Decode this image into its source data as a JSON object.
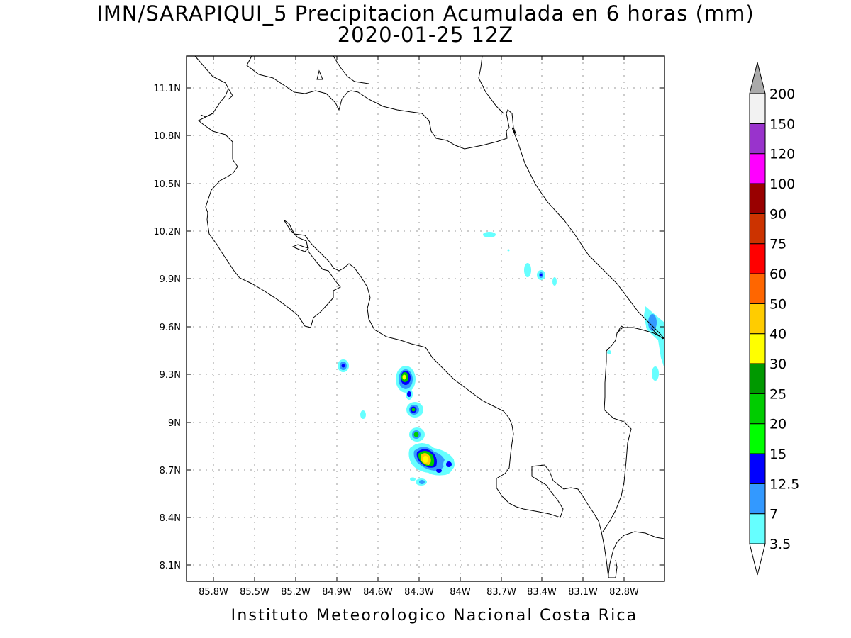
{
  "title": {
    "line1": "IMN/SARAPIQUI_5 Precipitacion Acumulada en 6 horas (mm)",
    "line2": "2020-01-25 12Z"
  },
  "footer": "Instituto Meteorologico Nacional Costa Rica",
  "map": {
    "lon_range": [
      -86.0,
      -83.0
    ],
    "lat_range": [
      8.0,
      11.2
    ],
    "x_tick_labels": [
      "85.8W",
      "85.5W",
      "85.2W",
      "84.9W",
      "84.6W",
      "84.3W",
      "84W",
      "83.7W",
      "83.4W",
      "83.1W",
      "82.8W"
    ],
    "y_tick_labels": [
      "11.1N",
      "10.8N",
      "10.5N",
      "10.2N",
      "9.9N",
      "9.6N",
      "9.3N",
      "9N",
      "8.7N",
      "8.4N",
      "8.1N"
    ],
    "grid": "dotted"
  },
  "colorbar": {
    "levels": [
      "3.5",
      "7",
      "12.5",
      "15",
      "20",
      "25",
      "30",
      "40",
      "50",
      "60",
      "75",
      "90",
      "100",
      "120",
      "150",
      "200"
    ],
    "colors": [
      "#66ffff",
      "#3399ff",
      "#0000ff",
      "#00ff00",
      "#00cc00",
      "#009900",
      "#ffff00",
      "#ffcc00",
      "#ff6600",
      "#ff0000",
      "#cc3300",
      "#990000",
      "#ff00ff",
      "#9933cc",
      "#f2f2f2"
    ],
    "under_color": "#ffffff",
    "over_color": "#aaaaaa"
  },
  "colors": {
    "coast": "#000000",
    "grid": "#999999"
  }
}
